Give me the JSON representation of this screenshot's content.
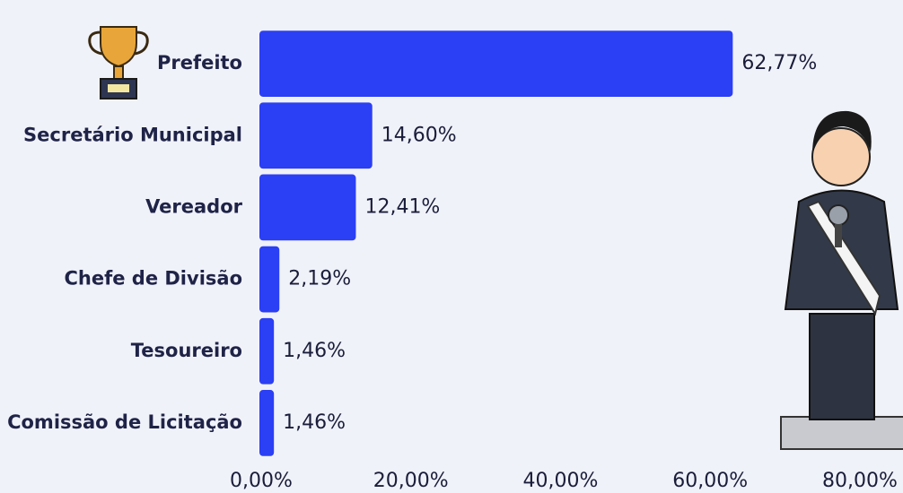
{
  "chart_data": {
    "type": "barh",
    "categories": [
      "Prefeito",
      "Secretário Municipal",
      "Vereador",
      "Chefe de Divisão",
      "Tesoureiro",
      "Comissão de Licitação"
    ],
    "values": [
      62.77,
      14.6,
      12.41,
      2.19,
      1.46,
      1.46
    ],
    "value_labels": [
      "62,77%",
      "14,60%",
      "12,41%",
      "2,19%",
      "1,46%",
      "1,46%"
    ],
    "color": "#2b3ff5",
    "xlim": [
      0,
      80
    ],
    "xticks": [
      {
        "value": 0,
        "label": "0,00%"
      },
      {
        "value": 20,
        "label": "20,00%"
      },
      {
        "value": 40,
        "label": "40,00%"
      },
      {
        "value": 60,
        "label": "60,00%"
      },
      {
        "value": 80,
        "label": "80,00%"
      }
    ]
  }
}
